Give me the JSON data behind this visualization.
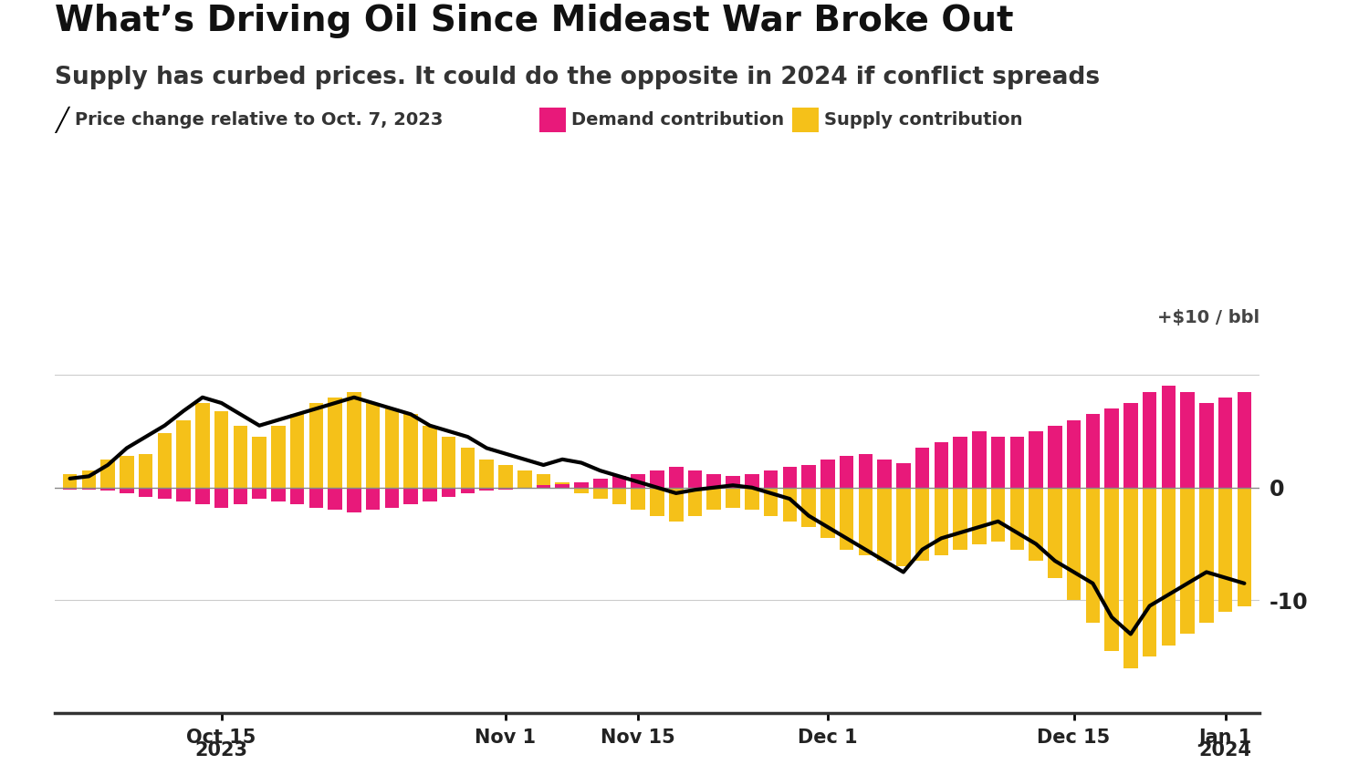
{
  "title": "What’s Driving Oil Since Mideast War Broke Out",
  "subtitle": "Supply has curbed prices. It could do the opposite in 2024 if conflict spreads",
  "legend_line_label": "Price change relative to Oct. 7, 2023",
  "legend_demand_label": "Demand contribution",
  "legend_supply_label": "Supply contribution",
  "unit_label": "+$10 / bbl",
  "yticks": [
    0,
    -10
  ],
  "ylim": [
    -20,
    13
  ],
  "background_color": "#FFFFFF",
  "bar_color_demand": "#E8197A",
  "bar_color_supply": "#F5C119",
  "line_color": "#000000",
  "supply": [
    1.2,
    1.5,
    2.5,
    2.8,
    3.0,
    4.8,
    6.0,
    7.5,
    6.8,
    5.5,
    4.5,
    5.5,
    6.5,
    7.5,
    8.0,
    8.5,
    7.5,
    7.0,
    6.5,
    5.5,
    4.5,
    3.5,
    2.5,
    2.0,
    1.5,
    1.2,
    0.5,
    -0.5,
    -1.0,
    -1.5,
    -2.0,
    -2.5,
    -3.0,
    -2.5,
    -2.0,
    -1.8,
    -2.0,
    -2.5,
    -3.0,
    -3.5,
    -4.5,
    -5.5,
    -6.0,
    -6.5,
    -7.0,
    -6.5,
    -6.0,
    -5.5,
    -5.0,
    -4.8,
    -5.5,
    -6.5,
    -8.0,
    -10.0,
    -12.0,
    -14.5,
    -16.0,
    -15.0,
    -14.0,
    -13.0,
    -12.0,
    -11.0,
    -10.5
  ],
  "demand": [
    -0.2,
    -0.2,
    -0.3,
    -0.5,
    -0.8,
    -1.0,
    -1.2,
    -1.5,
    -1.8,
    -1.5,
    -1.0,
    -1.2,
    -1.5,
    -1.8,
    -2.0,
    -2.2,
    -2.0,
    -1.8,
    -1.5,
    -1.2,
    -0.8,
    -0.5,
    -0.3,
    -0.2,
    -0.1,
    0.2,
    0.3,
    0.5,
    0.8,
    1.0,
    1.2,
    1.5,
    1.8,
    1.5,
    1.2,
    1.0,
    1.2,
    1.5,
    1.8,
    2.0,
    2.5,
    2.8,
    3.0,
    2.5,
    2.2,
    3.5,
    4.0,
    4.5,
    5.0,
    4.5,
    4.5,
    5.0,
    5.5,
    6.0,
    6.5,
    7.0,
    7.5,
    8.5,
    9.0,
    8.5,
    7.5,
    8.0,
    8.5
  ],
  "price_change": [
    0.8,
    1.0,
    2.0,
    3.5,
    4.5,
    5.5,
    6.8,
    8.0,
    7.5,
    6.5,
    5.5,
    6.0,
    6.5,
    7.0,
    7.5,
    8.0,
    7.5,
    7.0,
    6.5,
    5.5,
    5.0,
    4.5,
    3.5,
    3.0,
    2.5,
    2.0,
    2.5,
    2.2,
    1.5,
    1.0,
    0.5,
    0.0,
    -0.5,
    -0.2,
    0.0,
    0.2,
    0.0,
    -0.5,
    -1.0,
    -2.5,
    -3.5,
    -4.5,
    -5.5,
    -6.5,
    -7.5,
    -5.5,
    -4.5,
    -4.0,
    -3.5,
    -3.0,
    -4.0,
    -5.0,
    -6.5,
    -7.5,
    -8.5,
    -11.5,
    -13.0,
    -10.5,
    -9.5,
    -8.5,
    -7.5,
    -8.0,
    -8.5
  ],
  "xtick_indices": [
    8,
    23,
    30,
    40,
    53,
    61
  ],
  "xtick_labels_main": [
    "Oct 15",
    "Nov 1",
    "Nov 15",
    "Dec 1",
    "Dec 15",
    "Jan 1"
  ],
  "xtick_labels_year": [
    "2023",
    "",
    "",
    "",
    "",
    "2024"
  ]
}
